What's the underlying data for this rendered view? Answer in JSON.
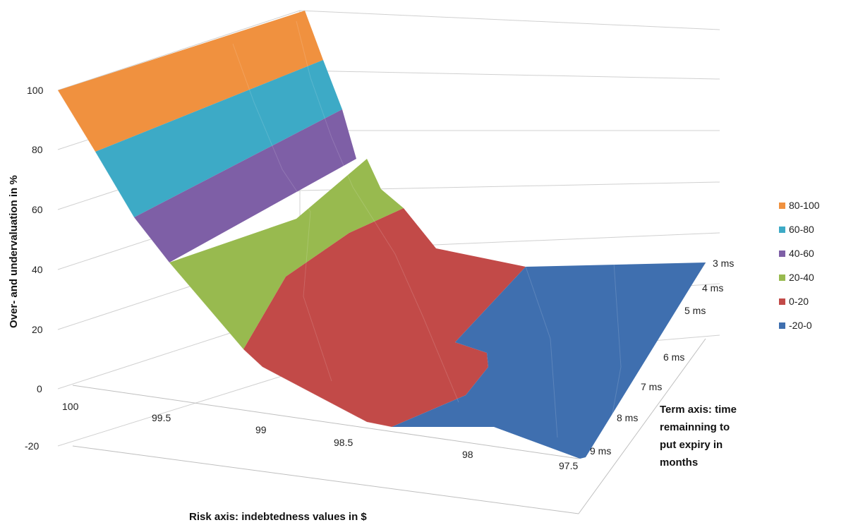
{
  "chart_data": {
    "type": "surface",
    "ylabel": "Over- and undervaluation in %",
    "xlabel": "Risk axis: indebtedness values in $",
    "zlabel": [
      "Term axis: time",
      "remainning to",
      "put expiry in",
      "months"
    ],
    "value_axis": {
      "min": -20,
      "max": 100,
      "ticks": [
        "-20",
        "0",
        "20",
        "40",
        "60",
        "80",
        "100"
      ]
    },
    "risk_ticks": [
      "100",
      "99.5",
      "99",
      "98.5",
      "98",
      "97.5"
    ],
    "term_ticks": [
      "3 ms",
      "4 ms",
      "5 ms",
      "6 ms",
      "7 ms",
      "8 ms",
      "9 ms"
    ],
    "legend": [
      {
        "label": "80-100",
        "color": "#F0913F"
      },
      {
        "label": "60-80",
        "color": "#3DAAC6"
      },
      {
        "label": "40-60",
        "color": "#7E5FA6"
      },
      {
        "label": "20-40",
        "color": "#98BA4F"
      },
      {
        "label": "0-20",
        "color": "#C24A48"
      },
      {
        "label": "-20-0",
        "color": "#3F6FAF"
      }
    ],
    "grid": true,
    "legend_position": "right"
  }
}
